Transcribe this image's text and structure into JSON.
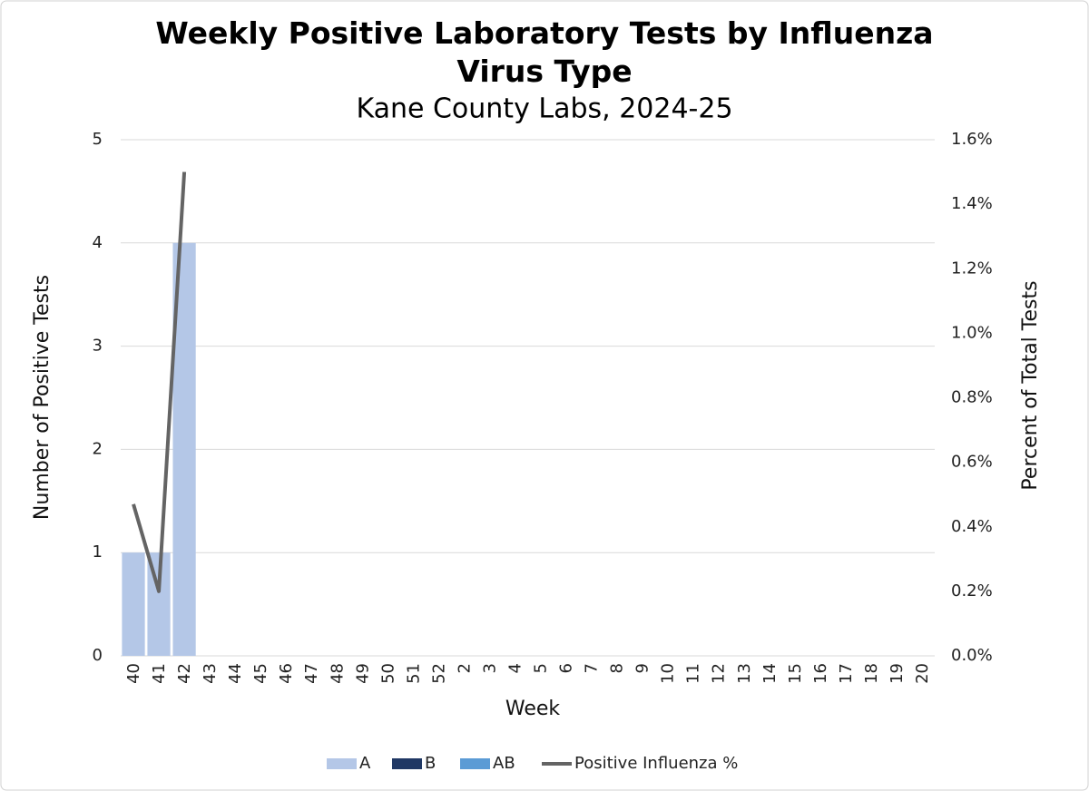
{
  "chart_data": {
    "type": "bar",
    "title": "Weekly Positive Laboratory Tests by Influenza Virus Type",
    "subtitle": "Kane County Labs, 2024-25",
    "x_label": "Week",
    "y_label": "Number of Positive Tests",
    "y2_label": "Percent of Total Tests",
    "categories": [
      "40",
      "41",
      "42",
      "43",
      "44",
      "45",
      "46",
      "47",
      "48",
      "49",
      "50",
      "51",
      "52",
      "2",
      "3",
      "4",
      "5",
      "6",
      "7",
      "8",
      "9",
      "10",
      "11",
      "12",
      "13",
      "14",
      "15",
      "16",
      "17",
      "18",
      "19",
      "20"
    ],
    "series": [
      {
        "name": "A",
        "type": "bar",
        "color": "#b4c7e7",
        "values": [
          1,
          1,
          4,
          null,
          null,
          null,
          null,
          null,
          null,
          null,
          null,
          null,
          null,
          null,
          null,
          null,
          null,
          null,
          null,
          null,
          null,
          null,
          null,
          null,
          null,
          null,
          null,
          null,
          null,
          null,
          null,
          null
        ]
      },
      {
        "name": "B",
        "type": "bar",
        "color": "#203864",
        "values": [
          0,
          0,
          0,
          null,
          null,
          null,
          null,
          null,
          null,
          null,
          null,
          null,
          null,
          null,
          null,
          null,
          null,
          null,
          null,
          null,
          null,
          null,
          null,
          null,
          null,
          null,
          null,
          null,
          null,
          null,
          null,
          null
        ]
      },
      {
        "name": "AB",
        "type": "bar",
        "color": "#5b9bd5",
        "values": [
          0,
          0,
          0,
          null,
          null,
          null,
          null,
          null,
          null,
          null,
          null,
          null,
          null,
          null,
          null,
          null,
          null,
          null,
          null,
          null,
          null,
          null,
          null,
          null,
          null,
          null,
          null,
          null,
          null,
          null,
          null,
          null
        ]
      },
      {
        "name": "Positive Influenza %",
        "type": "line",
        "axis": "y2",
        "color": "#646464",
        "values": [
          0.47,
          0.2,
          1.5,
          null,
          null,
          null,
          null,
          null,
          null,
          null,
          null,
          null,
          null,
          null,
          null,
          null,
          null,
          null,
          null,
          null,
          null,
          null,
          null,
          null,
          null,
          null,
          null,
          null,
          null,
          null,
          null,
          null
        ]
      }
    ],
    "ylim": [
      0,
      5
    ],
    "yticks": [
      0,
      1,
      2,
      3,
      4,
      5
    ],
    "y2lim": [
      0,
      1.6
    ],
    "y2ticks": [
      {
        "value": 0,
        "label": "0.0%"
      },
      {
        "value": 0.2,
        "label": "0.2%"
      },
      {
        "value": 0.4,
        "label": "0.4%"
      },
      {
        "value": 0.6,
        "label": "0.6%"
      },
      {
        "value": 0.8,
        "label": "0.8%"
      },
      {
        "value": 1.0,
        "label": "1.0%"
      },
      {
        "value": 1.2,
        "label": "1.2%"
      },
      {
        "value": 1.4,
        "label": "1.4%"
      },
      {
        "value": 1.6,
        "label": "1.6%"
      }
    ],
    "grid": true,
    "legend": "bottom",
    "stacked": true
  }
}
